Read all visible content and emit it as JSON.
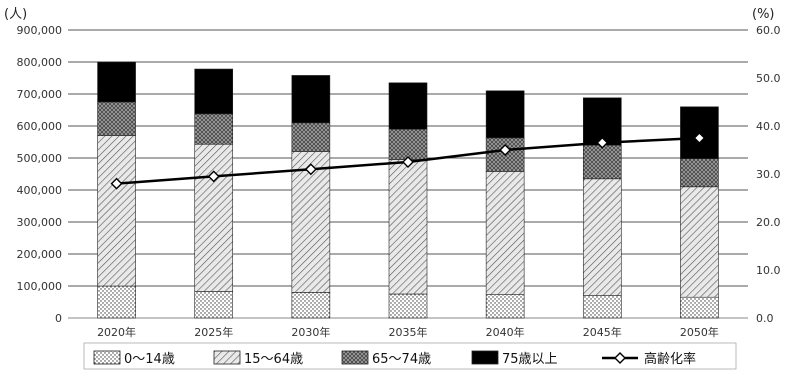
{
  "chart_data": {
    "type": "bar",
    "stacked": true,
    "categories": [
      "2020年",
      "2025年",
      "2030年",
      "2035年",
      "2040年",
      "2045年",
      "2050年"
    ],
    "y_left": {
      "unit_label": "(人)",
      "range": [
        0,
        900000
      ],
      "ticks": [
        "0",
        "100,000",
        "200,000",
        "300,000",
        "400,000",
        "500,000",
        "600,000",
        "700,000",
        "800,000",
        "900,000"
      ]
    },
    "y_right": {
      "unit_label": "(%)",
      "range": [
        0,
        60
      ],
      "ticks": [
        "0.0",
        "10.0",
        "20.0",
        "30.0",
        "40.0",
        "50.0",
        "60.0"
      ]
    },
    "series": [
      {
        "name": "0〜14歳",
        "values": [
          100000,
          83000,
          80000,
          75000,
          73000,
          70000,
          65000
        ],
        "pattern": "dots"
      },
      {
        "name": "15〜64歳",
        "values": [
          470000,
          460000,
          440000,
          420000,
          385000,
          365000,
          345000
        ],
        "pattern": "hatch"
      },
      {
        "name": "65〜74歳",
        "values": [
          105000,
          95000,
          90000,
          95000,
          105000,
          105000,
          88000
        ],
        "pattern": "crosshatch"
      },
      {
        "name": "75歳以上",
        "values": [
          125000,
          140000,
          148000,
          145000,
          147000,
          148000,
          162000
        ],
        "pattern": "solid"
      }
    ],
    "line_series": {
      "name": "高齢化率",
      "axis": "right",
      "values": [
        28.0,
        29.5,
        31.0,
        32.5,
        35.0,
        36.5,
        37.5
      ]
    },
    "grid": true,
    "legend_position": "bottom"
  }
}
